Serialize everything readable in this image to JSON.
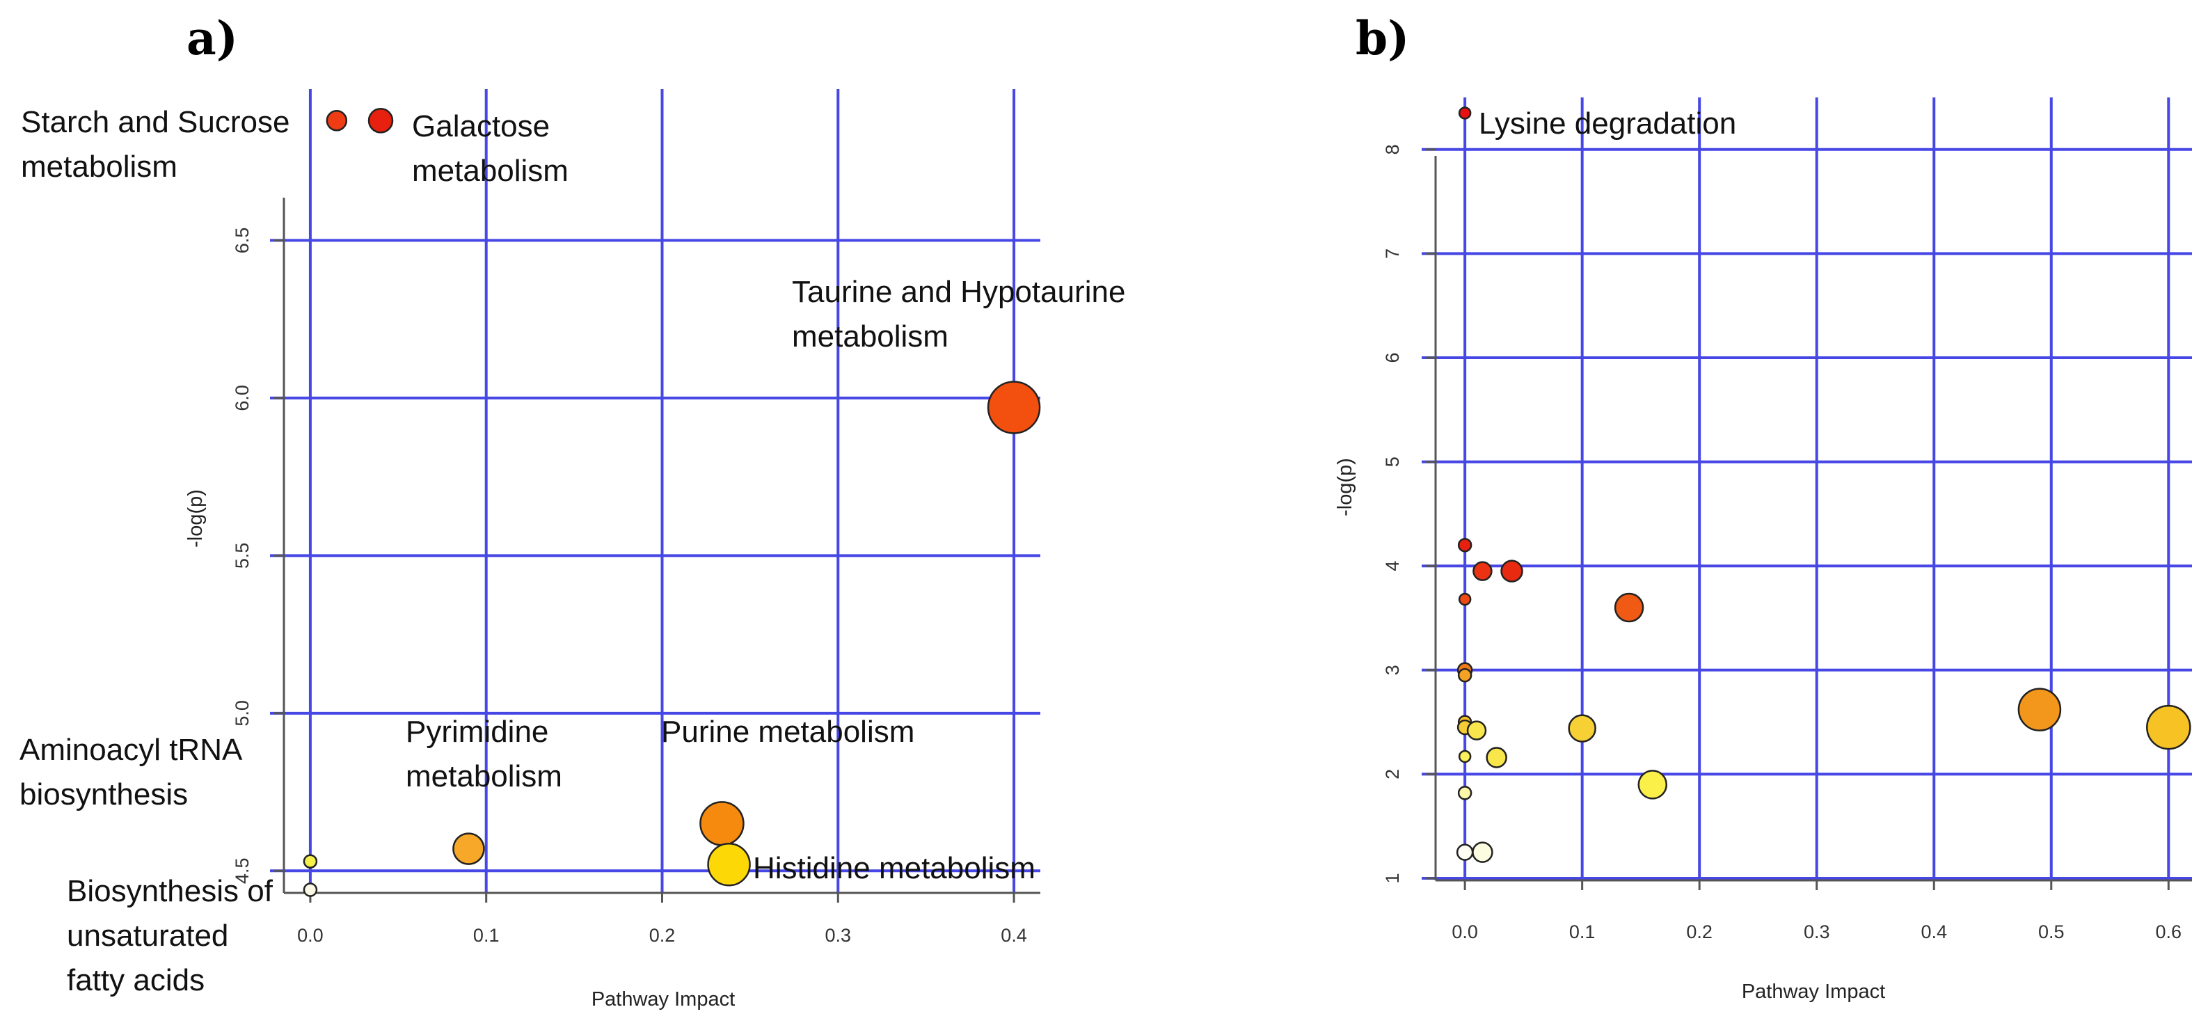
{
  "chart_data": [
    {
      "type": "scatter",
      "panel_label": "a)",
      "xlabel": "Pathway Impact",
      "ylabel": "-log(p)",
      "xlim": [
        -0.015,
        0.415
      ],
      "ylim": [
        4.43,
        6.98
      ],
      "xticks": [
        "0.0",
        "0.1",
        "0.2",
        "0.3",
        "0.4"
      ],
      "xtick_values": [
        0.0,
        0.1,
        0.2,
        0.3,
        0.4
      ],
      "yticks": [
        "4.5",
        "5.0",
        "5.5",
        "6.0",
        "6.5"
      ],
      "ytick_values": [
        4.5,
        5.0,
        5.5,
        6.0,
        6.5
      ],
      "xgrid": [
        0.0,
        0.1,
        0.2,
        0.3,
        0.4
      ],
      "ygrid": [
        4.5,
        5.0,
        5.5,
        6.0,
        6.5
      ],
      "grid": true,
      "points": [
        {
          "x": 0.015,
          "y": 6.88,
          "size": 14,
          "color": "#f03c14"
        },
        {
          "x": 0.04,
          "y": 6.88,
          "size": 17,
          "color": "#e82010"
        },
        {
          "x": 0.4,
          "y": 5.97,
          "size": 37,
          "color": "#f35010"
        },
        {
          "x": 0.234,
          "y": 4.65,
          "size": 31,
          "color": "#f58a0e"
        },
        {
          "x": 0.238,
          "y": 4.52,
          "size": 30,
          "color": "#fcd806"
        },
        {
          "x": 0.09,
          "y": 4.57,
          "size": 22,
          "color": "#f7a828"
        },
        {
          "x": 0.0,
          "y": 4.53,
          "size": 9,
          "color": "#f5f04a"
        },
        {
          "x": 0.0,
          "y": 4.44,
          "size": 9,
          "color": "#fbf9e6"
        }
      ],
      "annotations": [
        {
          "lines": [
            "Starch and Sucrose",
            "metabolism"
          ]
        },
        {
          "lines": [
            "Galactose",
            "metabolism"
          ]
        },
        {
          "lines": [
            "Taurine and Hypotaurine",
            "metabolism"
          ]
        },
        {
          "lines": [
            "Purine metabolism"
          ]
        },
        {
          "lines": [
            "Pyrimidine",
            "metabolism"
          ]
        },
        {
          "lines": [
            "Aminoacyl tRNA",
            "biosynthesis"
          ]
        },
        {
          "lines": [
            "Histidine metabolism"
          ]
        },
        {
          "lines": [
            "Biosynthesis of",
            "unsaturated",
            "fatty acids"
          ]
        }
      ]
    },
    {
      "type": "scatter",
      "panel_label": "b)",
      "xlabel": "Pathway Impact",
      "ylabel": "-log(p)",
      "xlim": [
        -0.025,
        0.62
      ],
      "ylim": [
        0.98,
        8.5
      ],
      "xticks": [
        "0.0",
        "0.1",
        "0.2",
        "0.3",
        "0.4",
        "0.5",
        "0.6"
      ],
      "xtick_values": [
        0.0,
        0.1,
        0.2,
        0.3,
        0.4,
        0.5,
        0.6
      ],
      "yticks": [
        "1",
        "2",
        "3",
        "4",
        "5",
        "6",
        "7",
        "8"
      ],
      "ytick_values": [
        1,
        2,
        3,
        4,
        5,
        6,
        7,
        8
      ],
      "xgrid": [
        0.0,
        0.1,
        0.2,
        0.3,
        0.4,
        0.5,
        0.6
      ],
      "ygrid": [
        1,
        2,
        3,
        4,
        5,
        6,
        7,
        8
      ],
      "grid": true,
      "points": [
        {
          "x": 0.0,
          "y": 8.35,
          "size": 8,
          "color": "#e81010"
        },
        {
          "x": 0.0,
          "y": 4.2,
          "size": 9,
          "color": "#e82010"
        },
        {
          "x": 0.015,
          "y": 3.95,
          "size": 13,
          "color": "#eb3212"
        },
        {
          "x": 0.04,
          "y": 3.95,
          "size": 15,
          "color": "#e82a10"
        },
        {
          "x": 0.0,
          "y": 3.68,
          "size": 8,
          "color": "#f04a14"
        },
        {
          "x": 0.14,
          "y": 3.6,
          "size": 20,
          "color": "#f05a14"
        },
        {
          "x": 0.0,
          "y": 3.0,
          "size": 10,
          "color": "#f07a18"
        },
        {
          "x": 0.0,
          "y": 2.95,
          "size": 9,
          "color": "#f5a224"
        },
        {
          "x": 0.49,
          "y": 2.62,
          "size": 30,
          "color": "#f3961c"
        },
        {
          "x": 0.0,
          "y": 2.5,
          "size": 9,
          "color": "#f7c22c"
        },
        {
          "x": 0.0,
          "y": 2.45,
          "size": 10,
          "color": "#f8cc34"
        },
        {
          "x": 0.01,
          "y": 2.42,
          "size": 13,
          "color": "#f9e64c"
        },
        {
          "x": 0.1,
          "y": 2.44,
          "size": 19,
          "color": "#f7d036"
        },
        {
          "x": 0.6,
          "y": 2.45,
          "size": 31,
          "color": "#f7c224"
        },
        {
          "x": 0.0,
          "y": 2.17,
          "size": 8,
          "color": "#fbf05a"
        },
        {
          "x": 0.027,
          "y": 2.16,
          "size": 14,
          "color": "#f9e64a"
        },
        {
          "x": 0.16,
          "y": 1.9,
          "size": 20,
          "color": "#fbf04a"
        },
        {
          "x": 0.0,
          "y": 1.82,
          "size": 9,
          "color": "#fcf8a8"
        },
        {
          "x": 0.0,
          "y": 1.25,
          "size": 11,
          "color": "#fefef4"
        },
        {
          "x": 0.015,
          "y": 1.25,
          "size": 14,
          "color": "#fcfce0"
        }
      ],
      "annotations": [
        {
          "lines": [
            "Lysine degradation"
          ]
        }
      ]
    }
  ]
}
